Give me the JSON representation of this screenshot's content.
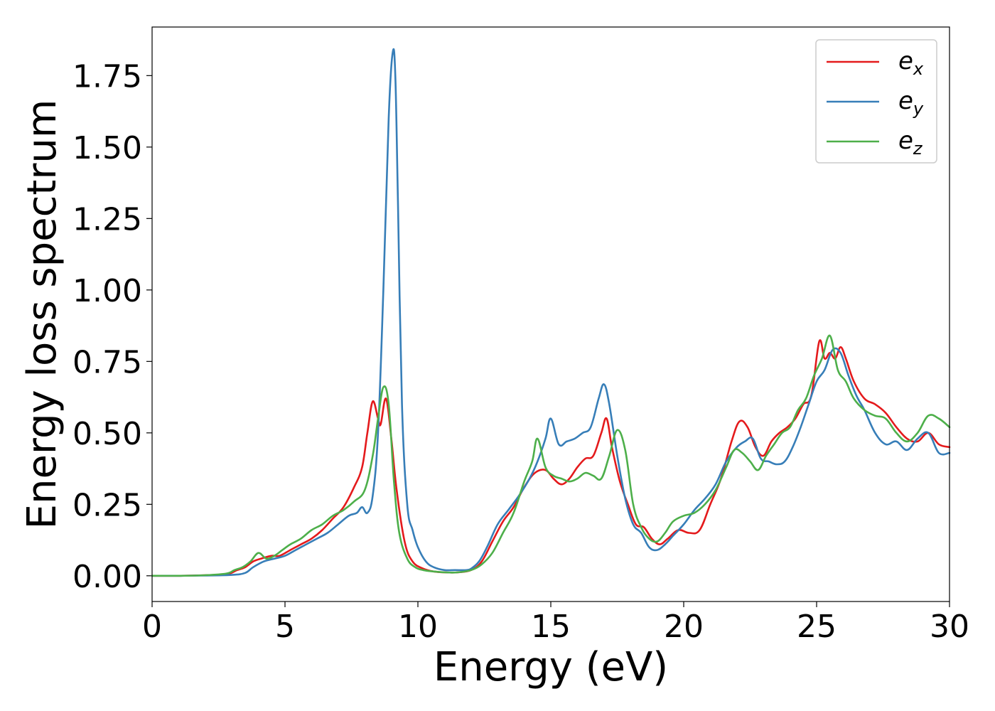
{
  "chart_data": {
    "type": "line",
    "xlabel": "Energy (eV)",
    "ylabel": "Energy loss spectrum",
    "xlim": [
      0,
      30
    ],
    "ylim": [
      -0.09,
      1.92
    ],
    "xticks": [
      0,
      5,
      10,
      15,
      20,
      25,
      30
    ],
    "xtick_labels": [
      "0",
      "5",
      "10",
      "15",
      "20",
      "25",
      "30"
    ],
    "yticks": [
      0.0,
      0.25,
      0.5,
      0.75,
      1.0,
      1.25,
      1.5,
      1.75
    ],
    "ytick_labels": [
      "0.00",
      "0.25",
      "0.50",
      "0.75",
      "1.00",
      "1.25",
      "1.50",
      "1.75"
    ],
    "grid": false,
    "legend_position": "top-right",
    "series": [
      {
        "name": "e_x",
        "legend_base": "e",
        "legend_sub": "x",
        "color": "#e41a1c",
        "x": [
          0,
          1,
          2,
          2.8,
          3.2,
          3.5,
          3.8,
          4.1,
          4.5,
          4.8,
          5.2,
          5.6,
          6.0,
          6.4,
          6.8,
          7.2,
          7.6,
          7.9,
          8.1,
          8.3,
          8.5,
          8.6,
          8.8,
          9.0,
          9.2,
          9.5,
          9.8,
          10.2,
          10.6,
          11.0,
          11.5,
          12.0,
          12.4,
          12.8,
          13.2,
          13.6,
          14.0,
          14.4,
          14.8,
          15.1,
          15.4,
          15.7,
          16.0,
          16.3,
          16.6,
          16.9,
          17.1,
          17.3,
          17.6,
          17.9,
          18.2,
          18.5,
          18.8,
          19.1,
          19.4,
          19.8,
          20.2,
          20.6,
          21.0,
          21.4,
          21.8,
          22.1,
          22.4,
          22.7,
          23.0,
          23.3,
          23.6,
          23.9,
          24.2,
          24.5,
          24.8,
          25.1,
          25.3,
          25.5,
          25.7,
          25.9,
          26.1,
          26.4,
          26.8,
          27.2,
          27.6,
          28.0,
          28.4,
          28.8,
          29.2,
          29.6,
          30.0
        ],
        "y": [
          0.0,
          0.0,
          0.002,
          0.005,
          0.02,
          0.03,
          0.05,
          0.06,
          0.07,
          0.07,
          0.09,
          0.11,
          0.13,
          0.16,
          0.2,
          0.24,
          0.31,
          0.38,
          0.5,
          0.61,
          0.55,
          0.53,
          0.62,
          0.48,
          0.3,
          0.12,
          0.05,
          0.025,
          0.015,
          0.012,
          0.012,
          0.02,
          0.05,
          0.12,
          0.19,
          0.24,
          0.31,
          0.36,
          0.37,
          0.34,
          0.32,
          0.34,
          0.38,
          0.41,
          0.42,
          0.5,
          0.55,
          0.45,
          0.33,
          0.25,
          0.18,
          0.17,
          0.13,
          0.11,
          0.13,
          0.16,
          0.15,
          0.16,
          0.25,
          0.34,
          0.47,
          0.54,
          0.52,
          0.45,
          0.42,
          0.47,
          0.5,
          0.52,
          0.55,
          0.6,
          0.63,
          0.82,
          0.76,
          0.78,
          0.76,
          0.8,
          0.76,
          0.68,
          0.62,
          0.6,
          0.57,
          0.52,
          0.48,
          0.47,
          0.5,
          0.46,
          0.45
        ]
      },
      {
        "name": "e_y",
        "legend_base": "e",
        "legend_sub": "y",
        "color": "#377eb8",
        "x": [
          0,
          1,
          2,
          3.0,
          3.5,
          3.8,
          4.2,
          4.6,
          5.0,
          5.4,
          5.8,
          6.2,
          6.6,
          7.0,
          7.4,
          7.7,
          7.9,
          8.1,
          8.3,
          8.5,
          8.7,
          8.9,
          9.05,
          9.15,
          9.25,
          9.4,
          9.6,
          9.8,
          10.0,
          10.3,
          10.6,
          11.0,
          11.4,
          11.8,
          12.0,
          12.3,
          12.6,
          13.0,
          13.4,
          13.8,
          14.2,
          14.5,
          14.8,
          15.0,
          15.3,
          15.6,
          15.9,
          16.2,
          16.5,
          16.8,
          17.0,
          17.2,
          17.5,
          17.8,
          18.1,
          18.4,
          18.7,
          19.0,
          19.3,
          19.6,
          20.0,
          20.4,
          20.8,
          21.2,
          21.6,
          22.0,
          22.3,
          22.6,
          22.9,
          23.2,
          23.5,
          23.8,
          24.1,
          24.4,
          24.7,
          25.0,
          25.3,
          25.6,
          25.9,
          26.2,
          26.5,
          26.8,
          27.2,
          27.6,
          28.0,
          28.4,
          28.8,
          29.2,
          29.6,
          30.0
        ],
        "y": [
          0.0,
          0.0,
          0.001,
          0.003,
          0.01,
          0.03,
          0.05,
          0.06,
          0.07,
          0.09,
          0.11,
          0.13,
          0.15,
          0.18,
          0.21,
          0.22,
          0.24,
          0.22,
          0.28,
          0.5,
          1.0,
          1.6,
          1.83,
          1.75,
          1.3,
          0.6,
          0.25,
          0.16,
          0.1,
          0.05,
          0.03,
          0.02,
          0.02,
          0.02,
          0.025,
          0.05,
          0.1,
          0.18,
          0.23,
          0.28,
          0.34,
          0.4,
          0.48,
          0.55,
          0.46,
          0.47,
          0.48,
          0.5,
          0.52,
          0.62,
          0.67,
          0.6,
          0.42,
          0.27,
          0.18,
          0.15,
          0.1,
          0.09,
          0.11,
          0.14,
          0.18,
          0.23,
          0.27,
          0.32,
          0.4,
          0.45,
          0.47,
          0.48,
          0.41,
          0.4,
          0.39,
          0.4,
          0.45,
          0.52,
          0.6,
          0.68,
          0.72,
          0.79,
          0.78,
          0.7,
          0.63,
          0.58,
          0.5,
          0.46,
          0.47,
          0.44,
          0.48,
          0.5,
          0.43,
          0.43
        ]
      },
      {
        "name": "e_z",
        "legend_base": "e",
        "legend_sub": "z",
        "color": "#4daf4a",
        "x": [
          0,
          1,
          2,
          2.8,
          3.1,
          3.4,
          3.7,
          4.0,
          4.3,
          4.6,
          4.9,
          5.2,
          5.6,
          6.0,
          6.4,
          6.8,
          7.2,
          7.6,
          8.0,
          8.3,
          8.5,
          8.7,
          8.9,
          9.1,
          9.3,
          9.6,
          9.9,
          10.2,
          10.6,
          11.0,
          11.5,
          12.0,
          12.4,
          12.8,
          13.2,
          13.6,
          14.0,
          14.3,
          14.5,
          14.8,
          15.1,
          15.4,
          15.7,
          16.0,
          16.3,
          16.6,
          16.9,
          17.2,
          17.5,
          17.8,
          18.1,
          18.4,
          18.7,
          19.0,
          19.3,
          19.6,
          20.0,
          20.4,
          20.8,
          21.2,
          21.6,
          21.9,
          22.2,
          22.5,
          22.8,
          23.1,
          23.4,
          23.7,
          24.0,
          24.3,
          24.6,
          24.9,
          25.2,
          25.5,
          25.8,
          26.1,
          26.4,
          26.8,
          27.2,
          27.6,
          28.0,
          28.4,
          28.8,
          29.2,
          29.6,
          30.0
        ],
        "y": [
          0.0,
          0.0,
          0.002,
          0.008,
          0.02,
          0.03,
          0.05,
          0.08,
          0.06,
          0.07,
          0.09,
          0.11,
          0.13,
          0.16,
          0.18,
          0.21,
          0.23,
          0.26,
          0.3,
          0.42,
          0.55,
          0.66,
          0.6,
          0.33,
          0.15,
          0.06,
          0.03,
          0.02,
          0.015,
          0.012,
          0.012,
          0.02,
          0.04,
          0.08,
          0.15,
          0.22,
          0.33,
          0.4,
          0.48,
          0.38,
          0.35,
          0.34,
          0.33,
          0.34,
          0.36,
          0.35,
          0.34,
          0.42,
          0.51,
          0.44,
          0.25,
          0.17,
          0.13,
          0.12,
          0.15,
          0.19,
          0.21,
          0.22,
          0.25,
          0.3,
          0.38,
          0.44,
          0.43,
          0.4,
          0.37,
          0.42,
          0.46,
          0.5,
          0.52,
          0.58,
          0.62,
          0.7,
          0.76,
          0.84,
          0.72,
          0.68,
          0.62,
          0.58,
          0.56,
          0.55,
          0.5,
          0.47,
          0.5,
          0.56,
          0.55,
          0.52
        ]
      }
    ]
  }
}
